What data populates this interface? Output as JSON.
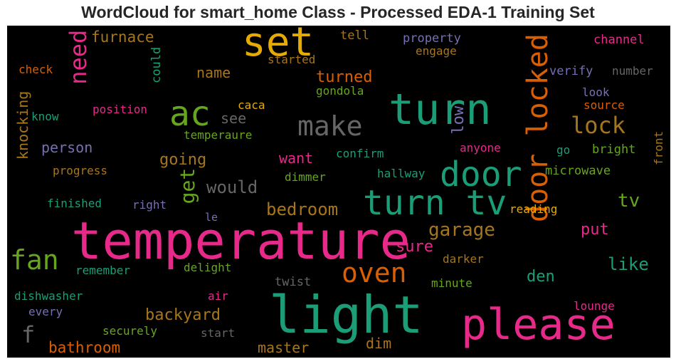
{
  "title": "WordCloud for smart_home Class - Processed EDA-1 Training Set",
  "chart_data": {
    "type": "wordcloud",
    "title": "WordCloud for smart_home Class - Processed EDA-1 Training Set",
    "background": "#000000",
    "words": [
      {
        "text": "temperature",
        "weight": 1.0,
        "color": "#e7298a"
      },
      {
        "text": "light",
        "weight": 0.92,
        "color": "#1b9e77"
      },
      {
        "text": "please",
        "weight": 0.82,
        "color": "#e7298a"
      },
      {
        "text": "turn",
        "weight": 0.78,
        "color": "#1b9e77"
      },
      {
        "text": "set",
        "weight": 0.65,
        "color": "#e6ab02"
      },
      {
        "text": "ac",
        "weight": 0.62,
        "color": "#66a61e"
      },
      {
        "text": "turn tv",
        "weight": 0.6,
        "color": "#1b9e77"
      },
      {
        "text": "door",
        "weight": 0.58,
        "color": "#1b9e77"
      },
      {
        "text": "door locked",
        "weight": 0.5,
        "color": "#d95f02"
      },
      {
        "text": "make",
        "weight": 0.46,
        "color": "#666666"
      },
      {
        "text": "oven",
        "weight": 0.45,
        "color": "#d95f02"
      },
      {
        "text": "fan",
        "weight": 0.44,
        "color": "#66a61e"
      },
      {
        "text": "need",
        "weight": 0.4,
        "color": "#e7298a"
      },
      {
        "text": "lock",
        "weight": 0.38,
        "color": "#a6761d"
      },
      {
        "text": "get",
        "weight": 0.34,
        "color": "#66a61e"
      },
      {
        "text": "f",
        "weight": 0.33,
        "color": "#666666"
      },
      {
        "text": "garage",
        "weight": 0.3,
        "color": "#a6761d"
      },
      {
        "text": "bedroom",
        "weight": 0.3,
        "color": "#a6761d"
      },
      {
        "text": "would",
        "weight": 0.28,
        "color": "#666666"
      },
      {
        "text": "tv",
        "weight": 0.28,
        "color": "#66a61e"
      },
      {
        "text": "low",
        "weight": 0.26,
        "color": "#7570b3"
      },
      {
        "text": "like",
        "weight": 0.26,
        "color": "#1b9e77"
      },
      {
        "text": "going",
        "weight": 0.25,
        "color": "#a6761d"
      },
      {
        "text": "sure",
        "weight": 0.25,
        "color": "#e7298a"
      },
      {
        "text": "turned",
        "weight": 0.25,
        "color": "#d95f02"
      },
      {
        "text": "person",
        "weight": 0.24,
        "color": "#7570b3"
      },
      {
        "text": "put",
        "weight": 0.24,
        "color": "#e7298a"
      },
      {
        "text": "name",
        "weight": 0.24,
        "color": "#a6761d"
      },
      {
        "text": "knocking",
        "weight": 0.24,
        "color": "#a6761d"
      },
      {
        "text": "backyard",
        "weight": 0.24,
        "color": "#a6761d"
      },
      {
        "text": "bathroom",
        "weight": 0.24,
        "color": "#d95f02"
      },
      {
        "text": "master",
        "weight": 0.23,
        "color": "#a6761d"
      },
      {
        "text": "furnace",
        "weight": 0.23,
        "color": "#a6761d"
      },
      {
        "text": "see",
        "weight": 0.22,
        "color": "#666666"
      },
      {
        "text": "want",
        "weight": 0.22,
        "color": "#e7298a"
      },
      {
        "text": "den",
        "weight": 0.22,
        "color": "#1b9e77"
      },
      {
        "text": "dim",
        "weight": 0.21,
        "color": "#a6761d"
      },
      {
        "text": "tell",
        "weight": 0.17,
        "color": "#a6761d"
      },
      {
        "text": "property",
        "weight": 0.17,
        "color": "#7570b3"
      },
      {
        "text": "channel",
        "weight": 0.17,
        "color": "#e7298a"
      },
      {
        "text": "could",
        "weight": 0.16,
        "color": "#1b9e77"
      },
      {
        "text": "engage",
        "weight": 0.16,
        "color": "#a6761d"
      },
      {
        "text": "started",
        "weight": 0.16,
        "color": "#a6761d"
      },
      {
        "text": "check",
        "weight": 0.16,
        "color": "#d95f02"
      },
      {
        "text": "verify",
        "weight": 0.16,
        "color": "#7570b3"
      },
      {
        "text": "number",
        "weight": 0.16,
        "color": "#666666"
      },
      {
        "text": "gondola",
        "weight": 0.16,
        "color": "#66a61e"
      },
      {
        "text": "look",
        "weight": 0.16,
        "color": "#7570b3"
      },
      {
        "text": "caca",
        "weight": 0.16,
        "color": "#e6ab02"
      },
      {
        "text": "source",
        "weight": 0.16,
        "color": "#d95f02"
      },
      {
        "text": "position",
        "weight": 0.16,
        "color": "#e7298a"
      },
      {
        "text": "know",
        "weight": 0.16,
        "color": "#1b9e77"
      },
      {
        "text": "temperaure",
        "weight": 0.16,
        "color": "#66a61e"
      },
      {
        "text": "anyone",
        "weight": 0.16,
        "color": "#e7298a"
      },
      {
        "text": "go",
        "weight": 0.16,
        "color": "#1b9e77"
      },
      {
        "text": "bright",
        "weight": 0.16,
        "color": "#66a61e"
      },
      {
        "text": "front",
        "weight": 0.16,
        "color": "#a6761d"
      },
      {
        "text": "confirm",
        "weight": 0.16,
        "color": "#1b9e77"
      },
      {
        "text": "progress",
        "weight": 0.16,
        "color": "#a6761d"
      },
      {
        "text": "dimmer",
        "weight": 0.16,
        "color": "#66a61e"
      },
      {
        "text": "hallway",
        "weight": 0.16,
        "color": "#1b9e77"
      },
      {
        "text": "microwave",
        "weight": 0.16,
        "color": "#66a61e"
      },
      {
        "text": "finished",
        "weight": 0.16,
        "color": "#1b9e77"
      },
      {
        "text": "right",
        "weight": 0.16,
        "color": "#7570b3"
      },
      {
        "text": "le",
        "weight": 0.15,
        "color": "#7570b3"
      },
      {
        "text": "reading",
        "weight": 0.16,
        "color": "#e6ab02"
      },
      {
        "text": "remember",
        "weight": 0.16,
        "color": "#1b9e77"
      },
      {
        "text": "delight",
        "weight": 0.16,
        "color": "#66a61e"
      },
      {
        "text": "darker",
        "weight": 0.16,
        "color": "#a6761d"
      },
      {
        "text": "twist",
        "weight": 0.16,
        "color": "#666666"
      },
      {
        "text": "minute",
        "weight": 0.16,
        "color": "#66a61e"
      },
      {
        "text": "dishwasher",
        "weight": 0.16,
        "color": "#1b9e77"
      },
      {
        "text": "air",
        "weight": 0.16,
        "color": "#e7298a"
      },
      {
        "text": "every",
        "weight": 0.16,
        "color": "#7570b3"
      },
      {
        "text": "lounge",
        "weight": 0.16,
        "color": "#e7298a"
      },
      {
        "text": "securely",
        "weight": 0.16,
        "color": "#66a61e"
      },
      {
        "text": "start",
        "weight": 0.16,
        "color": "#666666"
      }
    ]
  }
}
